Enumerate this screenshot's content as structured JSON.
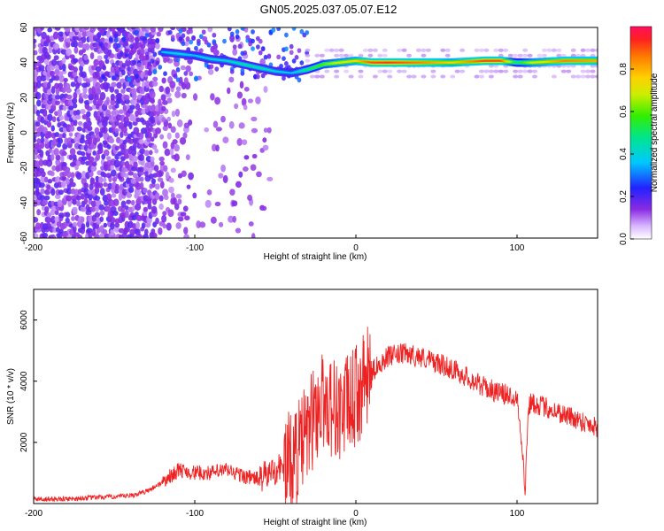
{
  "figure_title": "GN05.2025.037.05.07.E12",
  "colors": {
    "snr_line": "#ee2222",
    "spectro_low": "#b060ff",
    "ridge_high": "#ff2020"
  },
  "chart_data": [
    {
      "type": "heatmap",
      "xlabel": "Height of straight line (km)",
      "ylabel": "Frequency (Hz)",
      "xlim": [
        -200,
        150
      ],
      "ylim": [
        -60,
        60
      ],
      "xticks": [
        "-200",
        "-100",
        "0",
        "100"
      ],
      "yticks": [
        "-60",
        "-40",
        "-20",
        "0",
        "20",
        "40",
        "60"
      ],
      "colorbar": {
        "label": "Normalized spectral amplitude",
        "range": [
          0,
          1
        ],
        "ticks": [
          "0.0",
          "0.2",
          "0.4",
          "0.6",
          "0.8"
        ]
      },
      "ridge": {
        "height_km": [
          -120,
          -110,
          -100,
          -90,
          -80,
          -70,
          -60,
          -50,
          -40,
          -30,
          -20,
          -10,
          0,
          10,
          20,
          40,
          60,
          80,
          90,
          100,
          110,
          130,
          150
        ],
        "frequency_hz": [
          46,
          45,
          44,
          42,
          41,
          39,
          37,
          35,
          34,
          36,
          39,
          40,
          41,
          40,
          40,
          40,
          40,
          41,
          41,
          40,
          40,
          41,
          41
        ],
        "amplitude": [
          0.35,
          0.4,
          0.35,
          0.4,
          0.4,
          0.45,
          0.45,
          0.4,
          0.35,
          0.5,
          0.6,
          0.7,
          0.75,
          0.9,
          0.92,
          0.85,
          0.75,
          0.9,
          0.9,
          0.5,
          0.7,
          0.85,
          0.8
        ]
      }
    },
    {
      "type": "line",
      "xlabel": "Height of straight line (km)",
      "ylabel": "SNR (10 * v/v)",
      "xlim": [
        -200,
        150
      ],
      "ylim": [
        0,
        7000
      ],
      "xticks": [
        "-200",
        "-100",
        "0",
        "100"
      ],
      "yticks": [
        "2000",
        "4000",
        "6000"
      ],
      "series": [
        {
          "x": [
            -200,
            -180,
            -160,
            -140,
            -130,
            -120,
            -110,
            -100,
            -90,
            -80,
            -70,
            -60,
            -50,
            -40,
            -35,
            -30,
            -25,
            -20,
            -15,
            -10,
            -5,
            0,
            5,
            10,
            15,
            20,
            30,
            40,
            50,
            60,
            70,
            80,
            90,
            100,
            103,
            105,
            107,
            110,
            120,
            130,
            140,
            150
          ],
          "y": [
            150,
            150,
            200,
            250,
            400,
            700,
            1100,
            1000,
            1000,
            1100,
            900,
            800,
            1100,
            1400,
            1800,
            2300,
            3000,
            3400,
            3200,
            3000,
            3200,
            3500,
            3900,
            4300,
            4600,
            4800,
            4900,
            4800,
            4600,
            4400,
            4100,
            3800,
            3600,
            3500,
            2000,
            300,
            3200,
            3300,
            3100,
            2900,
            2700,
            2500
          ]
        }
      ]
    }
  ]
}
